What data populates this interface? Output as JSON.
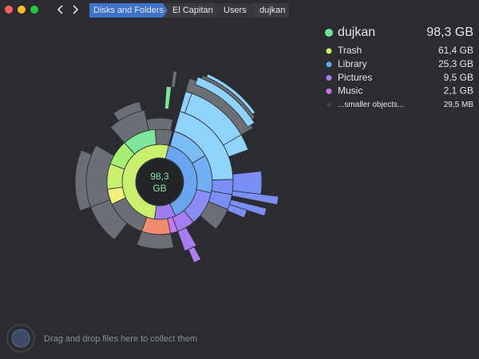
{
  "toolbar": {
    "breadcrumbs": [
      "Disks and Folders",
      "El Capitan",
      "Users",
      "dujkan"
    ]
  },
  "summary": {
    "name": "dujkan",
    "size": "98,3 GB"
  },
  "center": {
    "value": "98,3",
    "unit": "GB"
  },
  "items": [
    {
      "name": "Trash",
      "size": "61,4 GB"
    },
    {
      "name": "Library",
      "size": "25,3 GB"
    },
    {
      "name": "Pictures",
      "size": "9,5 GB"
    },
    {
      "name": "Music",
      "size": "2,1 GB"
    },
    {
      "name": "...smaller objects...",
      "size": "29,5  MB"
    }
  ],
  "footer": {
    "hint": "Drag and drop files here to collect them"
  }
}
